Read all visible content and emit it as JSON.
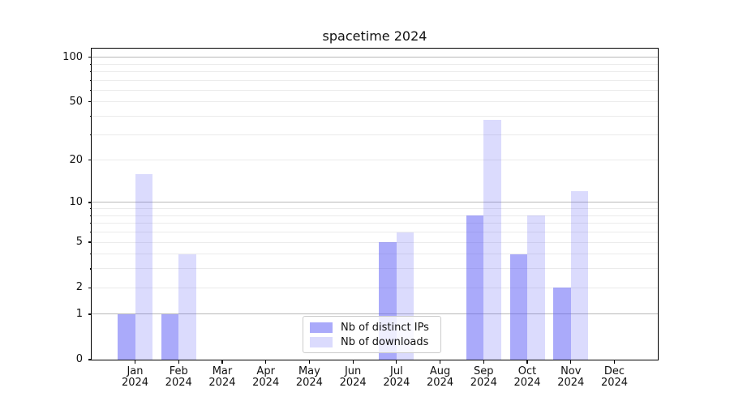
{
  "chart_data": {
    "type": "bar",
    "title": "spacetime 2024",
    "categories": [
      "Jan",
      "Feb",
      "Mar",
      "Apr",
      "May",
      "Jun",
      "Jul",
      "Aug",
      "Sep",
      "Oct",
      "Nov",
      "Dec"
    ],
    "year_label": "2024",
    "series": [
      {
        "name": "Nb of distinct IPs",
        "color": "#5555f5",
        "alpha": 0.5,
        "solid_hex": "#aaaafa",
        "values": [
          1,
          1,
          0,
          0,
          0,
          0,
          5,
          0,
          8,
          4,
          2,
          0
        ]
      },
      {
        "name": "Nb of downloads",
        "color": "#5555f5",
        "alpha": 0.21,
        "solid_hex": "#dbdbfa",
        "values": [
          16,
          4,
          0,
          0,
          0,
          0,
          6,
          0,
          38,
          8,
          12,
          0
        ]
      }
    ],
    "yscale": "log1p",
    "ylim": [
      0,
      114
    ],
    "yticks": [
      0,
      1,
      2,
      5,
      10,
      20,
      50,
      100
    ],
    "grid": {
      "major": [
        1,
        10,
        100
      ],
      "minor": [
        2,
        3,
        4,
        5,
        6,
        7,
        8,
        9,
        20,
        30,
        40,
        50,
        60,
        70,
        80,
        90
      ]
    },
    "legend_entries": [
      "Nb of distinct IPs",
      "Nb of downloads"
    ],
    "legend_position": "inside-bottom-center",
    "grid_on": true
  }
}
